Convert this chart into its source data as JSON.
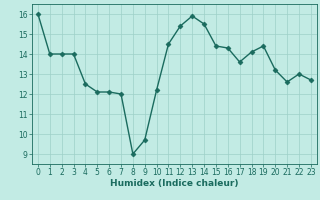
{
  "x": [
    0,
    1,
    2,
    3,
    4,
    5,
    6,
    7,
    8,
    9,
    10,
    11,
    12,
    13,
    14,
    15,
    16,
    17,
    18,
    19,
    20,
    21,
    22,
    23
  ],
  "y": [
    16.0,
    14.0,
    14.0,
    14.0,
    12.5,
    12.1,
    12.1,
    12.0,
    9.0,
    9.7,
    12.2,
    14.5,
    15.4,
    15.9,
    15.5,
    14.4,
    14.3,
    13.6,
    14.1,
    14.4,
    13.2,
    12.6,
    13.0,
    12.7
  ],
  "line_color": "#1a6b5e",
  "marker": "D",
  "marker_size": 2.5,
  "bg_color": "#c2ebe4",
  "grid_color": "#9ed0c8",
  "xlabel": "Humidex (Indice chaleur)",
  "xlim": [
    -0.5,
    23.5
  ],
  "ylim": [
    8.5,
    16.5
  ],
  "yticks": [
    9,
    10,
    11,
    12,
    13,
    14,
    15,
    16
  ],
  "xticks": [
    0,
    1,
    2,
    3,
    4,
    5,
    6,
    7,
    8,
    9,
    10,
    11,
    12,
    13,
    14,
    15,
    16,
    17,
    18,
    19,
    20,
    21,
    22,
    23
  ],
  "tick_color": "#1a6b5e",
  "tick_fontsize": 5.5,
  "xlabel_fontsize": 6.5,
  "linewidth": 1.0
}
